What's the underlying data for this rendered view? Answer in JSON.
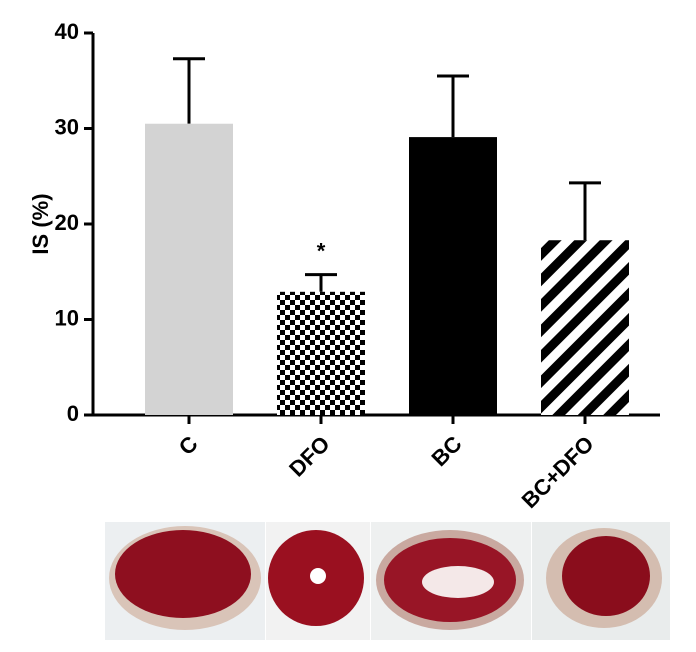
{
  "chart_data": {
    "type": "bar",
    "ylabel": "IS (%)",
    "categories": [
      "C",
      "DFO",
      "BC",
      "BC+DFO"
    ],
    "values": [
      30.5,
      12.9,
      29.1,
      18.3
    ],
    "errors": [
      6.8,
      1.8,
      6.4,
      6.0
    ],
    "colors": [
      "#d3d3d3",
      "#000000",
      "#000000",
      "#000000"
    ],
    "patterns": [
      "solid",
      "checker",
      "solid",
      "stripes"
    ],
    "ylim": [
      0,
      40
    ],
    "yticks": [
      0,
      10,
      20,
      30,
      40
    ],
    "annotations": [
      {
        "text": "*",
        "category": "DFO"
      }
    ]
  }
}
